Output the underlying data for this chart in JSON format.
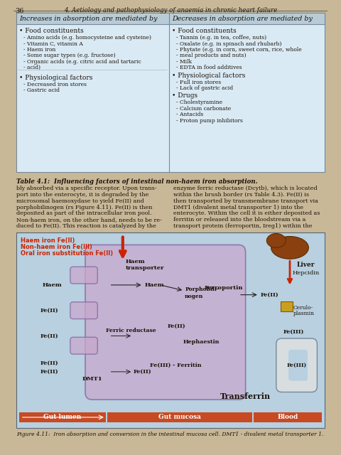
{
  "page_number": "36",
  "chapter_header": "4. Aetiology and pathophysiology of anaemia in chronic heart failure",
  "page_bg": "#c8b898",
  "book_bg": "#f2ede0",
  "table_header_bg": "#b8ccd8",
  "table_cell_bg": "#daeaf5",
  "table_title": "Table 4.1:  Influencing factors of intestinal non-haem iron absorption.",
  "col1_header": "Increases in absorption are mediated by",
  "col2_header": "Decreases in absorption are mediated by",
  "col1_section1_title": "Food constituents",
  "col1_section1_items": [
    "Amino acids (e.g. homocysteine and cysteine)",
    "Vitamin C, vitamin A",
    "Haem iron",
    "Some sugar types (e.g. fructose)",
    "Organic acids (e.g. citric acid and tartaric",
    "acid)"
  ],
  "col1_section2_title": "Physiological factors",
  "col1_section2_items": [
    "Decreased iron stores",
    "Gastric acid"
  ],
  "col2_section1_title": "Food constituents",
  "col2_section1_items": [
    "Tannin (e.g. in tea, coffee, nuts)",
    "Oxalate (e.g. in spinach and rhubarb)",
    "Phytate (e.g. in corn, sweet corn, rice, whole",
    "meal products and nuts)",
    "Milk",
    "EDTA in food additives"
  ],
  "col2_section2_title": "Physiological factors",
  "col2_section2_items": [
    "Full iron stores",
    "Lack of gastric acid"
  ],
  "col2_section3_title": "Drugs",
  "col2_section3_items": [
    "Cholestyramine",
    "Calcium carbonate",
    "Antacids",
    "Proton pump inhibitors"
  ],
  "body_left": [
    "bly absorbed via a specific receptor. Upon trans-",
    "port into the enterocyte, it is degraded by the",
    "microsomal haemoxydase to yield Fe(II) and",
    "porphobilinogen (rs Figure 4.11). Fe(II) is then",
    "deposited as part of the intracellular iron pool.",
    "Non-haem iron, on the other hand, needs to be re-",
    "duced to Fe(II). This reaction is catalyzed by the"
  ],
  "body_right": [
    "enzyme ferric reductase (Dcytb), which is located",
    "within the brush border (rs Table 4.3). Fe(II) is",
    "then transported by transmembrane transport via",
    "DMT1 (divalent metal transporter 1) into the",
    "enterocyte. Within the cell it is either deposited as",
    "ferritin or released into the bloodstream via a",
    "transport protein (ferroportin, Ireg1) within the"
  ],
  "diagram_bg": "#b8d0e0",
  "cell_color": "#c8a8cc",
  "cell_edge": "#8060a0",
  "arrow_color": "#cc2200",
  "legend_color": "#cc2200",
  "legend": [
    "Haem iron Fe(II)",
    "Non-haem iron Fe(III)",
    "Oral iron substitution Fe(II)"
  ],
  "liver_color": "#8B4010",
  "cerulo_color": "#c8a020",
  "zone_labels": [
    "Gut lumen",
    "Gut mucosa",
    "Blood"
  ],
  "figure_caption": "Figure 4.11:  Iron absorption and conversion in the intestinal mucosa cell. DMT1 - divalent metal transporter 1.",
  "text_color": "#1a1208"
}
